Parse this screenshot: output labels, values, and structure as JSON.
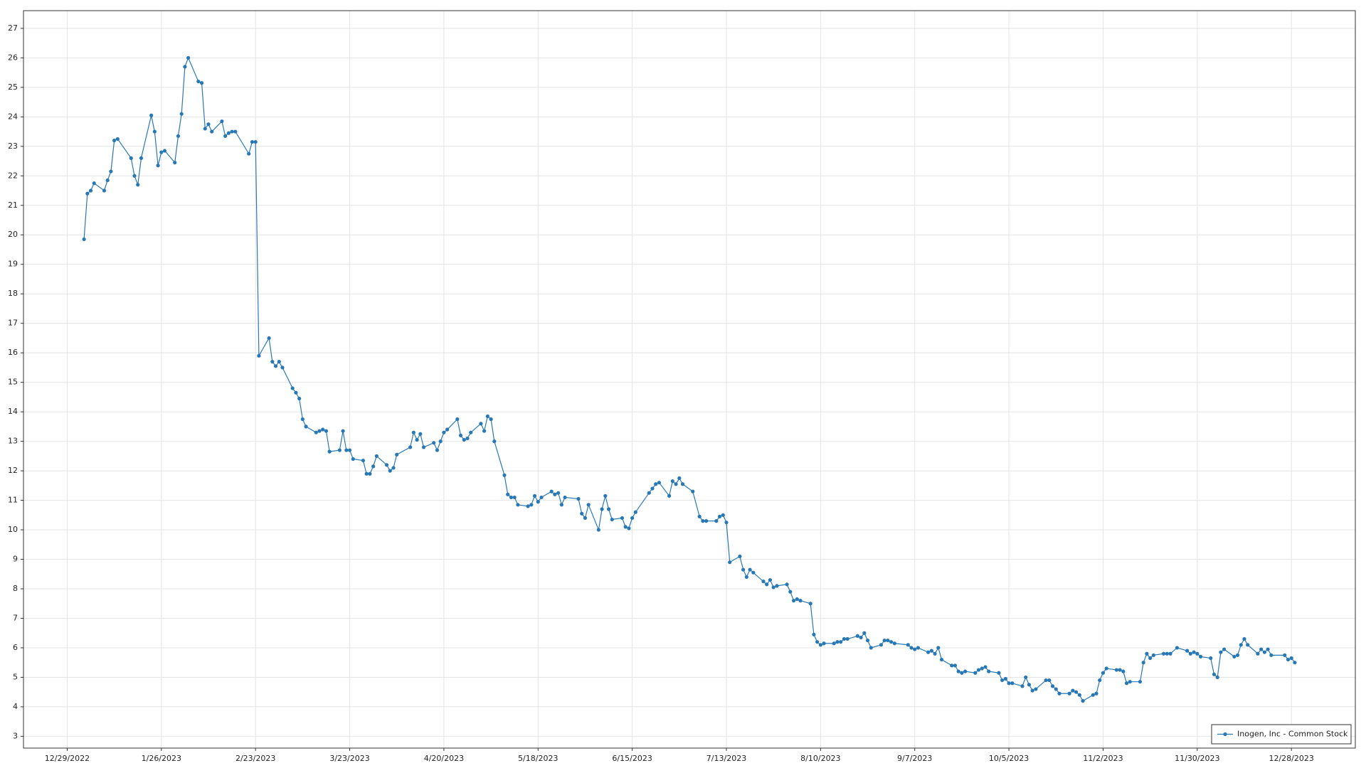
{
  "chart_data": {
    "type": "line",
    "x": [
      "1/3/2023",
      "1/4/2023",
      "1/5/2023",
      "1/6/2023",
      "1/9/2023",
      "1/10/2023",
      "1/11/2023",
      "1/12/2023",
      "1/13/2023",
      "1/17/2023",
      "1/18/2023",
      "1/19/2023",
      "1/20/2023",
      "1/23/2023",
      "1/24/2023",
      "1/25/2023",
      "1/26/2023",
      "1/27/2023",
      "1/30/2023",
      "1/31/2023",
      "2/1/2023",
      "2/2/2023",
      "2/3/2023",
      "2/6/2023",
      "2/7/2023",
      "2/8/2023",
      "2/9/2023",
      "2/10/2023",
      "2/13/2023",
      "2/14/2023",
      "2/15/2023",
      "2/16/2023",
      "2/17/2023",
      "2/21/2023",
      "2/22/2023",
      "2/23/2023",
      "2/24/2023",
      "2/27/2023",
      "2/28/2023",
      "3/1/2023",
      "3/2/2023",
      "3/3/2023",
      "3/6/2023",
      "3/7/2023",
      "3/8/2023",
      "3/9/2023",
      "3/10/2023",
      "3/13/2023",
      "3/14/2023",
      "3/15/2023",
      "3/16/2023",
      "3/17/2023",
      "3/20/2023",
      "3/21/2023",
      "3/22/2023",
      "3/23/2023",
      "3/24/2023",
      "3/27/2023",
      "3/28/2023",
      "3/29/2023",
      "3/30/2023",
      "3/31/2023",
      "4/3/2023",
      "4/4/2023",
      "4/5/2023",
      "4/6/2023",
      "4/10/2023",
      "4/11/2023",
      "4/12/2023",
      "4/13/2023",
      "4/14/2023",
      "4/17/2023",
      "4/18/2023",
      "4/19/2023",
      "4/20/2023",
      "4/21/2023",
      "4/24/2023",
      "4/25/2023",
      "4/26/2023",
      "4/27/2023",
      "4/28/2023",
      "5/1/2023",
      "5/2/2023",
      "5/3/2023",
      "5/4/2023",
      "5/5/2023",
      "5/8/2023",
      "5/9/2023",
      "5/10/2023",
      "5/11/2023",
      "5/12/2023",
      "5/15/2023",
      "5/16/2023",
      "5/17/2023",
      "5/18/2023",
      "5/19/2023",
      "5/22/2023",
      "5/23/2023",
      "5/24/2023",
      "5/25/2023",
      "5/26/2023",
      "5/30/2023",
      "5/31/2023",
      "6/1/2023",
      "6/2/2023",
      "6/5/2023",
      "6/6/2023",
      "6/7/2023",
      "6/8/2023",
      "6/9/2023",
      "6/12/2023",
      "6/13/2023",
      "6/14/2023",
      "6/15/2023",
      "6/16/2023",
      "6/20/2023",
      "6/21/2023",
      "6/22/2023",
      "6/23/2023",
      "6/26/2023",
      "6/27/2023",
      "6/28/2023",
      "6/29/2023",
      "6/30/2023",
      "7/3/2023",
      "7/5/2023",
      "7/6/2023",
      "7/7/2023",
      "7/10/2023",
      "7/11/2023",
      "7/12/2023",
      "7/13/2023",
      "7/14/2023",
      "7/17/2023",
      "7/18/2023",
      "7/19/2023",
      "7/20/2023",
      "7/21/2023",
      "7/24/2023",
      "7/25/2023",
      "7/26/2023",
      "7/27/2023",
      "7/28/2023",
      "7/31/2023",
      "8/1/2023",
      "8/2/2023",
      "8/3/2023",
      "8/4/2023",
      "8/7/2023",
      "8/8/2023",
      "8/9/2023",
      "8/10/2023",
      "8/11/2023",
      "8/14/2023",
      "8/15/2023",
      "8/16/2023",
      "8/17/2023",
      "8/18/2023",
      "8/21/2023",
      "8/22/2023",
      "8/23/2023",
      "8/24/2023",
      "8/25/2023",
      "8/28/2023",
      "8/29/2023",
      "8/30/2023",
      "8/31/2023",
      "9/1/2023",
      "9/5/2023",
      "9/6/2023",
      "9/7/2023",
      "9/8/2023",
      "9/11/2023",
      "9/12/2023",
      "9/13/2023",
      "9/14/2023",
      "9/15/2023",
      "9/18/2023",
      "9/19/2023",
      "9/20/2023",
      "9/21/2023",
      "9/22/2023",
      "9/25/2023",
      "9/26/2023",
      "9/27/2023",
      "9/28/2023",
      "9/29/2023",
      "10/2/2023",
      "10/3/2023",
      "10/4/2023",
      "10/5/2023",
      "10/6/2023",
      "10/9/2023",
      "10/10/2023",
      "10/11/2023",
      "10/12/2023",
      "10/13/2023",
      "10/16/2023",
      "10/17/2023",
      "10/18/2023",
      "10/19/2023",
      "10/20/2023",
      "10/23/2023",
      "10/24/2023",
      "10/25/2023",
      "10/26/2023",
      "10/27/2023",
      "10/30/2023",
      "10/31/2023",
      "11/1/2023",
      "11/2/2023",
      "11/3/2023",
      "11/6/2023",
      "11/7/2023",
      "11/8/2023",
      "11/9/2023",
      "11/10/2023",
      "11/13/2023",
      "11/14/2023",
      "11/15/2023",
      "11/16/2023",
      "11/17/2023",
      "11/20/2023",
      "11/21/2023",
      "11/22/2023",
      "11/24/2023",
      "11/27/2023",
      "11/28/2023",
      "11/29/2023",
      "11/30/2023",
      "12/1/2023",
      "12/4/2023",
      "12/5/2023",
      "12/6/2023",
      "12/7/2023",
      "12/8/2023",
      "12/11/2023",
      "12/12/2023",
      "12/13/2023",
      "12/14/2023",
      "12/15/2023",
      "12/18/2023",
      "12/19/2023",
      "12/20/2023",
      "12/21/2023",
      "12/22/2023",
      "12/26/2023",
      "12/27/2023",
      "12/28/2023",
      "12/29/2023"
    ],
    "series": [
      {
        "name": "Inogen, Inc - Common Stock",
        "color": "#2878b5",
        "values": [
          19.85,
          21.4,
          21.5,
          21.75,
          21.5,
          21.85,
          22.15,
          23.2,
          23.25,
          22.6,
          22.0,
          21.7,
          22.6,
          24.05,
          23.5,
          22.35,
          22.8,
          22.85,
          22.45,
          23.35,
          24.1,
          25.7,
          26.0,
          25.2,
          25.15,
          23.6,
          23.75,
          23.5,
          23.85,
          23.35,
          23.45,
          23.5,
          23.5,
          22.75,
          23.15,
          23.15,
          15.9,
          16.5,
          15.7,
          15.55,
          15.7,
          15.5,
          14.8,
          14.65,
          14.45,
          13.75,
          13.5,
          13.3,
          13.35,
          13.4,
          13.35,
          12.65,
          12.7,
          13.35,
          12.7,
          12.7,
          12.4,
          12.35,
          11.9,
          11.9,
          12.15,
          12.5,
          12.2,
          12.0,
          12.1,
          12.55,
          12.8,
          13.3,
          13.05,
          13.25,
          12.8,
          12.95,
          12.7,
          13.0,
          13.3,
          13.4,
          13.75,
          13.2,
          13.05,
          13.1,
          13.3,
          13.6,
          13.35,
          13.85,
          13.75,
          13.0,
          11.85,
          11.2,
          11.1,
          11.1,
          10.85,
          10.8,
          10.85,
          11.15,
          10.95,
          11.1,
          11.3,
          11.2,
          11.25,
          10.85,
          11.1,
          11.05,
          10.55,
          10.4,
          10.85,
          10.0,
          10.7,
          11.15,
          10.7,
          10.35,
          10.4,
          10.1,
          10.05,
          10.4,
          10.6,
          11.25,
          11.4,
          11.55,
          11.6,
          11.15,
          11.65,
          11.55,
          11.75,
          11.55,
          11.3,
          10.45,
          10.3,
          10.3,
          10.3,
          10.45,
          10.5,
          10.25,
          8.9,
          9.1,
          8.65,
          8.4,
          8.65,
          8.55,
          8.25,
          8.15,
          8.3,
          8.05,
          8.1,
          8.15,
          7.9,
          7.6,
          7.65,
          7.6,
          7.5,
          6.45,
          6.2,
          6.1,
          6.15,
          6.15,
          6.2,
          6.2,
          6.3,
          6.3,
          6.4,
          6.35,
          6.5,
          6.25,
          6.0,
          6.1,
          6.25,
          6.25,
          6.2,
          6.15,
          6.1,
          6.0,
          5.95,
          6.0,
          5.85,
          5.9,
          5.8,
          6.0,
          5.6,
          5.4,
          5.4,
          5.2,
          5.15,
          5.2,
          5.15,
          5.25,
          5.3,
          5.35,
          5.2,
          5.15,
          4.9,
          4.95,
          4.8,
          4.8,
          4.7,
          5.0,
          4.75,
          4.55,
          4.6,
          4.9,
          4.9,
          4.7,
          4.6,
          4.45,
          4.45,
          4.55,
          4.5,
          4.4,
          4.2,
          4.4,
          4.45,
          4.9,
          5.15,
          5.3,
          5.25,
          5.25,
          5.2,
          4.8,
          4.85,
          4.85,
          5.5,
          5.8,
          5.65,
          5.75,
          5.8,
          5.8,
          5.8,
          6.0,
          5.9,
          5.8,
          5.85,
          5.8,
          5.7,
          5.65,
          5.1,
          5.0,
          5.85,
          5.95,
          5.7,
          5.75,
          6.1,
          6.3,
          6.1,
          5.8,
          5.95,
          5.85,
          5.95,
          5.75,
          5.75,
          5.6,
          5.65,
          5.5
        ]
      }
    ],
    "xlim": [
      "12/16/2022",
      "1/16/2024"
    ],
    "xticks": [
      "12/29/2022",
      "1/26/2023",
      "2/23/2023",
      "3/23/2023",
      "4/20/2023",
      "5/18/2023",
      "6/15/2023",
      "7/13/2023",
      "8/10/2023",
      "9/7/2023",
      "10/5/2023",
      "11/2/2023",
      "11/30/2023",
      "12/28/2023"
    ],
    "ylim": [
      2.6,
      27.6
    ],
    "yticks": [
      3,
      4,
      5,
      6,
      7,
      8,
      9,
      10,
      11,
      12,
      13,
      14,
      15,
      16,
      17,
      18,
      19,
      20,
      21,
      22,
      23,
      24,
      25,
      26,
      27
    ],
    "grid": true,
    "legend": "lower right"
  }
}
